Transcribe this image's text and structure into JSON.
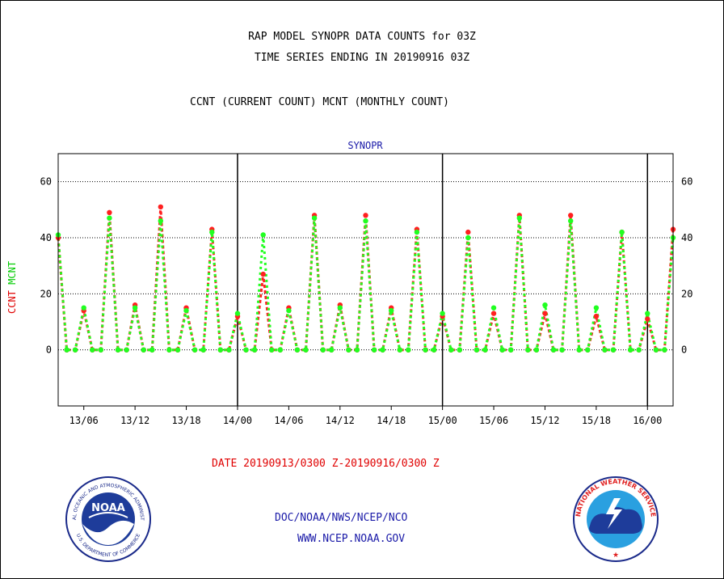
{
  "header": {
    "title_line1": "RAP MODEL SYNOPR DATA COUNTS for 03Z",
    "title_line2": "TIME SERIES ENDING IN 20190916 03Z",
    "title_line3": "CCNT (CURRENT COUNT) MCNT (MONTHLY COUNT)"
  },
  "footer": {
    "date_range": "DATE 20190913/0300 Z-20190916/0300 Z",
    "org": "DOC/NOAA/NWS/NCEP/NCO",
    "url": "WWW.NCEP.NOAA.GOV"
  },
  "logos": {
    "noaa_text": "NOAA",
    "noaa_ring": "NATIONAL OCEANIC AND ATMOSPHERIC ADMINISTRATION",
    "noaa_ring_bottom": "U.S. DEPARTMENT OF COMMERCE",
    "nws_ring": "NATIONAL WEATHER SERVICE"
  },
  "colors": {
    "ccnt": "#ff2020",
    "mcnt": "#20ff20",
    "title_blue": "#1a1aa8",
    "date_red": "#e00000"
  },
  "chart_data": {
    "type": "line",
    "title": "SYNOPR",
    "ylabel_ccnt": "CCNT",
    "ylabel_mcnt": "MCNT",
    "ylim": [
      -20,
      70
    ],
    "yticks": [
      0,
      20,
      40,
      60
    ],
    "x_start_hour": 3,
    "x_end_hour": 75,
    "xticks": [
      {
        "hour": 6,
        "label": "13/06"
      },
      {
        "hour": 12,
        "label": "13/12"
      },
      {
        "hour": 18,
        "label": "13/18"
      },
      {
        "hour": 24,
        "label": "14/00"
      },
      {
        "hour": 30,
        "label": "14/06"
      },
      {
        "hour": 36,
        "label": "14/12"
      },
      {
        "hour": 42,
        "label": "14/18"
      },
      {
        "hour": 48,
        "label": "15/00"
      },
      {
        "hour": 54,
        "label": "15/06"
      },
      {
        "hour": 60,
        "label": "15/12"
      },
      {
        "hour": 66,
        "label": "15/18"
      },
      {
        "hour": 72,
        "label": "16/00"
      }
    ],
    "day_dividers": [
      24,
      48,
      72
    ],
    "grid": true,
    "series": [
      {
        "name": "CCNT",
        "color": "#ff2020",
        "values": [
          [
            3,
            40
          ],
          [
            4,
            0
          ],
          [
            5,
            0
          ],
          [
            6,
            14
          ],
          [
            7,
            0
          ],
          [
            8,
            0
          ],
          [
            9,
            49
          ],
          [
            10,
            0
          ],
          [
            11,
            0
          ],
          [
            12,
            16
          ],
          [
            13,
            0
          ],
          [
            14,
            0
          ],
          [
            15,
            51
          ],
          [
            16,
            0
          ],
          [
            17,
            0
          ],
          [
            18,
            15
          ],
          [
            19,
            0
          ],
          [
            20,
            0
          ],
          [
            21,
            43
          ],
          [
            22,
            0
          ],
          [
            23,
            0
          ],
          [
            24,
            12
          ],
          [
            25,
            0
          ],
          [
            26,
            0
          ],
          [
            27,
            27
          ],
          [
            28,
            0
          ],
          [
            29,
            0
          ],
          [
            30,
            15
          ],
          [
            31,
            0
          ],
          [
            32,
            0
          ],
          [
            33,
            48
          ],
          [
            34,
            0
          ],
          [
            35,
            0
          ],
          [
            36,
            16
          ],
          [
            37,
            0
          ],
          [
            38,
            0
          ],
          [
            39,
            48
          ],
          [
            40,
            0
          ],
          [
            41,
            0
          ],
          [
            42,
            15
          ],
          [
            43,
            0
          ],
          [
            44,
            0
          ],
          [
            45,
            43
          ],
          [
            46,
            0
          ],
          [
            47,
            0
          ],
          [
            48,
            12
          ],
          [
            49,
            0
          ],
          [
            50,
            0
          ],
          [
            51,
            42
          ],
          [
            52,
            0
          ],
          [
            53,
            0
          ],
          [
            54,
            13
          ],
          [
            55,
            0
          ],
          [
            56,
            0
          ],
          [
            57,
            48
          ],
          [
            58,
            0
          ],
          [
            59,
            0
          ],
          [
            60,
            13
          ],
          [
            61,
            0
          ],
          [
            62,
            0
          ],
          [
            63,
            48
          ],
          [
            64,
            0
          ],
          [
            65,
            0
          ],
          [
            66,
            12
          ],
          [
            67,
            0
          ],
          [
            68,
            0
          ],
          [
            69,
            42
          ],
          [
            70,
            0
          ],
          [
            71,
            0
          ],
          [
            72,
            11
          ],
          [
            73,
            0
          ],
          [
            74,
            0
          ],
          [
            75,
            43
          ]
        ]
      },
      {
        "name": "MCNT",
        "color": "#20ff20",
        "values": [
          [
            3,
            41
          ],
          [
            4,
            0
          ],
          [
            5,
            0
          ],
          [
            6,
            15
          ],
          [
            7,
            0
          ],
          [
            8,
            0
          ],
          [
            9,
            47
          ],
          [
            10,
            0
          ],
          [
            11,
            0
          ],
          [
            12,
            15
          ],
          [
            13,
            0
          ],
          [
            14,
            0
          ],
          [
            15,
            46
          ],
          [
            16,
            0
          ],
          [
            17,
            0
          ],
          [
            18,
            14
          ],
          [
            19,
            0
          ],
          [
            20,
            0
          ],
          [
            21,
            42
          ],
          [
            22,
            0
          ],
          [
            23,
            0
          ],
          [
            24,
            13
          ],
          [
            25,
            0
          ],
          [
            26,
            0
          ],
          [
            27,
            41
          ],
          [
            28,
            0
          ],
          [
            29,
            0
          ],
          [
            30,
            14
          ],
          [
            31,
            0
          ],
          [
            32,
            0
          ],
          [
            33,
            47
          ],
          [
            34,
            0
          ],
          [
            35,
            0
          ],
          [
            36,
            15
          ],
          [
            37,
            0
          ],
          [
            38,
            0
          ],
          [
            39,
            46
          ],
          [
            40,
            0
          ],
          [
            41,
            0
          ],
          [
            42,
            14
          ],
          [
            43,
            0
          ],
          [
            44,
            0
          ],
          [
            45,
            42
          ],
          [
            46,
            0
          ],
          [
            47,
            0
          ],
          [
            48,
            13
          ],
          [
            49,
            0
          ],
          [
            50,
            0
          ],
          [
            51,
            40
          ],
          [
            52,
            0
          ],
          [
            53,
            0
          ],
          [
            54,
            15
          ],
          [
            55,
            0
          ],
          [
            56,
            0
          ],
          [
            57,
            47
          ],
          [
            58,
            0
          ],
          [
            59,
            0
          ],
          [
            60,
            16
          ],
          [
            61,
            0
          ],
          [
            62,
            0
          ],
          [
            63,
            46
          ],
          [
            64,
            0
          ],
          [
            65,
            0
          ],
          [
            66,
            15
          ],
          [
            67,
            0
          ],
          [
            68,
            0
          ],
          [
            69,
            42
          ],
          [
            70,
            0
          ],
          [
            71,
            0
          ],
          [
            72,
            13
          ],
          [
            73,
            0
          ],
          [
            74,
            0
          ],
          [
            75,
            40
          ]
        ]
      }
    ]
  }
}
